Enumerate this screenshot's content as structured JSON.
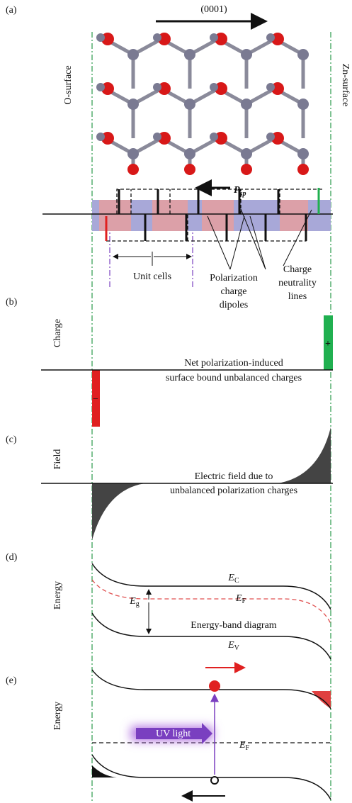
{
  "panels": {
    "a": "(a)",
    "b": "(b)",
    "c": "(c)",
    "d": "(d)",
    "e": "(e)"
  },
  "direction": "(0001)",
  "o_surface": "O-surface",
  "zn_surface": "Zn-surface",
  "polarization": {
    "symbol": "P",
    "subscript": "sp"
  },
  "unit_cells": "Unit cells",
  "dipoles_label": [
    "Polarization",
    "charge",
    "dipoles"
  ],
  "neutrality_label": [
    "Charge",
    "neutrality",
    "lines"
  ],
  "charge_axis": "Charge",
  "plus": "+",
  "minus": "−",
  "charge_note": [
    "Net polarization-induced",
    "surface bound unbalanced charges"
  ],
  "field_axis": "Field",
  "field_note": [
    "Electric field due to",
    "unbalanced polarization charges"
  ],
  "energy_axis_d": "Energy",
  "ec": {
    "symbol": "E",
    "subscript": "C"
  },
  "eg": {
    "symbol": "E",
    "subscript": "g"
  },
  "ef_d": {
    "symbol": "E",
    "subscript": "F"
  },
  "band_diagram": "Energy-band diagram",
  "ev": {
    "symbol": "E",
    "subscript": "V"
  },
  "energy_axis_e": "Energy",
  "uv_light": "UV light",
  "ef_e": {
    "symbol": "E",
    "subscript": "F"
  }
}
